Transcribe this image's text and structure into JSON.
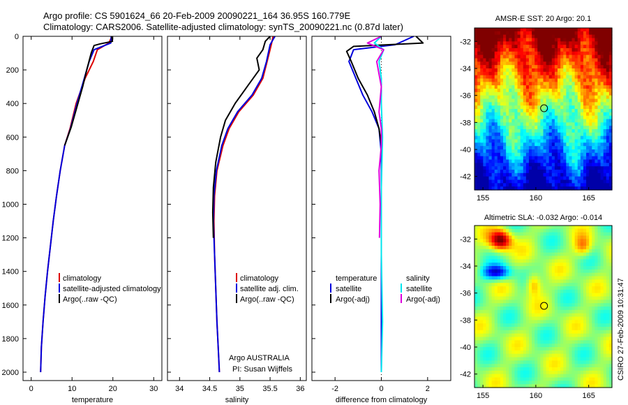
{
  "title": {
    "line1": "Argo profile: CS 5901624_66 20-Feb-2009 20090221_164 36.95S 160.779E",
    "line2": "Climatology: CARS2006. Satellite-adjusted climatology: synTS_20090221.nc (0.87d later)"
  },
  "credit": {
    "agency": "Argo AUSTRALIA",
    "pi": "PI: Susan Wijffels"
  },
  "stamp": "CSIRO 27-Feb-2009 10:31:47",
  "colors": {
    "clim": "#dd0000",
    "sat": "#0000dd",
    "argo": "#000000",
    "sat_sal": "#00e5ee",
    "argo_sal": "#dd00dd"
  },
  "chart_data": [
    {
      "type": "line",
      "name": "temperature",
      "xlabel": "temperature",
      "xlim": [
        -2,
        32
      ],
      "ylim": [
        0,
        2050
      ],
      "xticks": [
        "0",
        "10",
        "20",
        "30"
      ],
      "xtick_values": [
        0,
        10,
        20,
        30
      ],
      "yticks": [
        "0",
        "200",
        "400",
        "600",
        "800",
        "1000",
        "1200",
        "1400",
        "1600",
        "1800",
        "2000"
      ],
      "ytick_values": [
        0,
        200,
        400,
        600,
        800,
        1000,
        1200,
        1400,
        1600,
        1800,
        2000
      ],
      "legend": [
        "climatology",
        "satellite-adjusted climatology",
        "Argo(..raw -QC)"
      ],
      "series": [
        {
          "name": "climatology",
          "color": "#dd0000",
          "x": [
            19.8,
            19.0,
            16.2,
            15.2,
            13.2,
            11.0,
            9.5,
            8.2,
            7.1,
            6.2,
            5.4,
            4.7,
            4.0,
            3.4,
            2.9,
            2.5,
            2.3
          ],
          "y": [
            0,
            40,
            80,
            150,
            250,
            400,
            550,
            650,
            800,
            950,
            1100,
            1250,
            1400,
            1550,
            1700,
            1850,
            2000
          ]
        },
        {
          "name": "satellite-adjusted climatology",
          "color": "#0000dd",
          "x": [
            19.6,
            19.5,
            15.4,
            14.2,
            13.0,
            11.2,
            9.6,
            8.2,
            7.1,
            6.2,
            5.4,
            4.7,
            4.0,
            3.4,
            2.9,
            2.5,
            2.3
          ],
          "y": [
            0,
            40,
            80,
            150,
            250,
            400,
            550,
            650,
            800,
            950,
            1100,
            1250,
            1400,
            1550,
            1700,
            1850,
            2000
          ]
        },
        {
          "name": "Argo(..raw -QC)",
          "color": "#000000",
          "x": [
            19.7,
            19.9,
            16.9,
            15.4,
            14.7,
            13.6,
            12.6,
            11.2,
            9.8,
            8.2
          ],
          "y": [
            0,
            30,
            45,
            55,
            100,
            200,
            300,
            420,
            540,
            650
          ]
        }
      ]
    },
    {
      "type": "line",
      "name": "salinity",
      "xlabel": "salinity",
      "xlim": [
        33.8,
        36.1
      ],
      "ylim": [
        0,
        2050
      ],
      "xticks": [
        "34",
        "34.5",
        "35",
        "35.5",
        "36"
      ],
      "xtick_values": [
        34,
        34.5,
        35,
        35.5,
        36
      ],
      "legend": [
        "climatology",
        "satellite adj. clim.",
        "Argo(..raw -QC)"
      ],
      "series": [
        {
          "name": "climatology",
          "color": "#dd0000",
          "x": [
            35.55,
            35.52,
            35.45,
            35.38,
            35.22,
            34.98,
            34.82,
            34.72,
            34.62,
            34.58,
            34.57,
            34.58,
            34.6,
            34.62,
            34.64,
            34.66
          ],
          "y": [
            0,
            50,
            150,
            250,
            350,
            450,
            550,
            650,
            800,
            950,
            1100,
            1300,
            1500,
            1700,
            1850,
            2000
          ]
        },
        {
          "name": "satellite adj. clim.",
          "color": "#0000dd",
          "x": [
            35.58,
            35.5,
            35.44,
            35.36,
            35.2,
            34.96,
            34.8,
            34.7,
            34.61,
            34.57,
            34.56,
            34.58,
            34.6,
            34.62,
            34.64,
            34.66
          ],
          "y": [
            0,
            50,
            150,
            250,
            350,
            450,
            550,
            650,
            800,
            950,
            1100,
            1300,
            1500,
            1700,
            1850,
            2000
          ]
        },
        {
          "name": "Argo(..raw -QC)",
          "color": "#000000",
          "x": [
            35.5,
            35.42,
            35.38,
            35.28,
            35.32,
            35.12,
            34.92,
            34.76,
            34.68,
            34.6,
            34.56,
            34.55,
            34.56
          ],
          "y": [
            0,
            30,
            80,
            130,
            200,
            300,
            400,
            500,
            600,
            750,
            900,
            1050,
            1200
          ]
        }
      ]
    },
    {
      "type": "line",
      "name": "difference",
      "xlabel": "difference from climatology",
      "xlim": [
        -3,
        3
      ],
      "ylim": [
        0,
        2050
      ],
      "xticks": [
        "-2",
        "0",
        "2"
      ],
      "xtick_values": [
        -2,
        0,
        2
      ],
      "legend_left_title": "temperature",
      "legend_right_title": "salinity",
      "legend": [
        "satellite",
        "Argo(-adj)",
        "satellite",
        "Argo(-adj)"
      ],
      "series": [
        {
          "name": "temperature satellite",
          "color": "#0000dd",
          "x": [
            1.4,
            0.6,
            -1.2,
            -1.4,
            -1.1,
            -0.8,
            -0.4,
            -0.1,
            0.0,
            0.0,
            0.0,
            0.0
          ],
          "y": [
            0,
            50,
            80,
            150,
            250,
            350,
            450,
            550,
            700,
            1000,
            1500,
            2000
          ]
        },
        {
          "name": "temperature Argo(-adj)",
          "color": "#000000",
          "x": [
            1.5,
            1.8,
            -1.2,
            -1.5,
            -1.3,
            -1.0,
            -0.6,
            -0.3,
            -0.1,
            0.0,
            0.0
          ],
          "y": [
            0,
            40,
            60,
            90,
            150,
            250,
            350,
            450,
            550,
            650,
            700
          ]
        },
        {
          "name": "salinity satellite",
          "color": "#00e5ee",
          "x": [
            0.0,
            -0.3,
            0.1,
            -0.1,
            0.0,
            0.0,
            0.05,
            0.0,
            0.0,
            0.05,
            0.0
          ],
          "y": [
            0,
            40,
            80,
            150,
            250,
            400,
            600,
            900,
            1300,
            1700,
            2000
          ]
        },
        {
          "name": "salinity Argo(-adj)",
          "color": "#dd00dd",
          "x": [
            0.0,
            -0.6,
            0.1,
            -0.2,
            0.0,
            -0.1,
            0.0,
            0.0,
            -0.1,
            -0.05,
            -0.08
          ],
          "y": [
            0,
            40,
            80,
            150,
            300,
            450,
            550,
            650,
            800,
            1000,
            1200
          ]
        }
      ]
    },
    {
      "type": "heatmap",
      "name": "sst_map",
      "title": "AMSR-E SST: 20 Argo: 20.1",
      "xlim": [
        154.2,
        167.2
      ],
      "ylim": [
        -43.0,
        -31.0
      ],
      "xticks": [
        "155",
        "160",
        "165"
      ],
      "xtick_values": [
        155,
        160,
        165
      ],
      "yticks": [
        "-32",
        "-34",
        "-36",
        "-38",
        "-40",
        "-42"
      ],
      "ytick_values": [
        -32,
        -34,
        -36,
        -38,
        -40,
        -42
      ],
      "marker": {
        "lon": 160.779,
        "lat": -36.95
      }
    },
    {
      "type": "heatmap",
      "name": "sla_map",
      "title": "Altimetric SLA: -0.032 Argo: -0.014",
      "xlim": [
        154.2,
        167.2
      ],
      "ylim": [
        -43.0,
        -31.0
      ],
      "xticks": [
        "155",
        "160",
        "165"
      ],
      "xtick_values": [
        155,
        160,
        165
      ],
      "yticks": [
        "-32",
        "-34",
        "-36",
        "-38",
        "-40",
        "-42"
      ],
      "ytick_values": [
        -32,
        -34,
        -36,
        -38,
        -40,
        -42
      ],
      "marker": {
        "lon": 160.779,
        "lat": -36.95
      }
    }
  ]
}
